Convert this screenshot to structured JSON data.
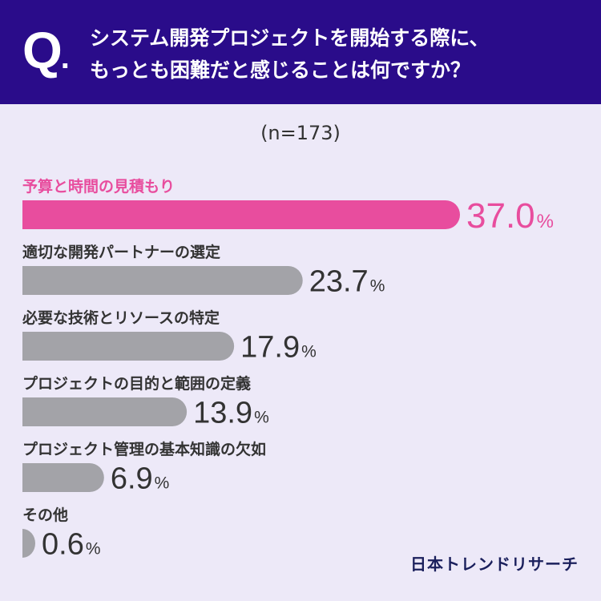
{
  "header": {
    "q_mark": "Q",
    "q_dot": ".",
    "question_line1": "システム開発プロジェクトを開始する際に、",
    "question_line2": "もっとも困難だと感じることは何ですか？"
  },
  "colors": {
    "header_bg": "#2a0c8a",
    "highlight": "#e84d9e",
    "bar_gray": "#a3a3a8",
    "text_dark": "#333333",
    "background": "#ede9f8"
  },
  "chart_data": {
    "type": "bar",
    "orientation": "horizontal",
    "sample_size_label": "(n=173)",
    "unit": "%",
    "categories": [
      "予算と時間の見積もり",
      "適切な開発パートナーの選定",
      "必要な技術とリソースの特定",
      "プロジェクトの目的と範囲の定義",
      "プロジェクト管理の基本知識の欠如",
      "その他"
    ],
    "values": [
      37.0,
      23.7,
      17.9,
      13.9,
      6.9,
      0.6
    ],
    "value_labels": [
      "37.0",
      "23.7",
      "17.9",
      "13.9",
      "6.9",
      "0.6"
    ],
    "highlighted_index": 0,
    "xlim": [
      0,
      37.0
    ]
  },
  "footer": {
    "logo": "日本トレンドリサーチ"
  }
}
